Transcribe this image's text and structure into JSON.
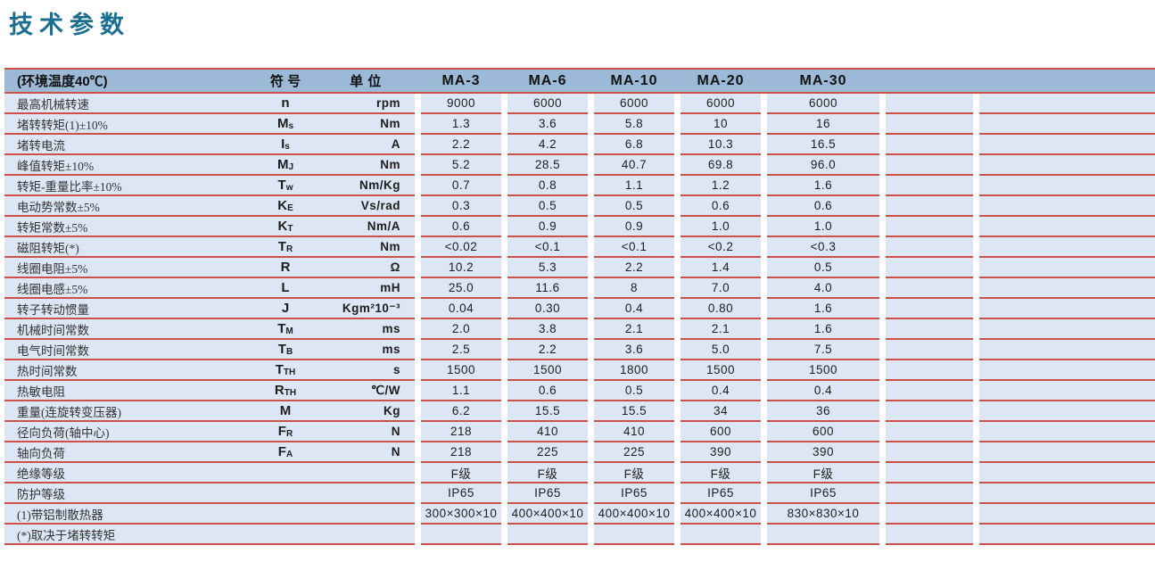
{
  "page": {
    "title": "技术参数"
  },
  "table": {
    "condition_note": "(环境温度40℃)",
    "col_headers": {
      "symbol": "符 号",
      "unit": "单 位"
    },
    "models": [
      "MA-3",
      "MA-6",
      "MA-10",
      "MA-20",
      "MA-30"
    ],
    "rows": [
      {
        "label": "最高机械转速",
        "symbol": "n",
        "sub": "",
        "unit": "rpm",
        "values": [
          "9000",
          "6000",
          "6000",
          "6000",
          "6000"
        ]
      },
      {
        "label": "堵转转矩(1)±10%",
        "symbol": "M",
        "sub": "s",
        "unit": "Nm",
        "values": [
          "1.3",
          "3.6",
          "5.8",
          "10",
          "16"
        ]
      },
      {
        "label": "堵转电流",
        "symbol": "I",
        "sub": "s",
        "unit": "A",
        "values": [
          "2.2",
          "4.2",
          "6.8",
          "10.3",
          "16.5"
        ]
      },
      {
        "label": "峰值转矩±10%",
        "symbol": "M",
        "sub": "J",
        "unit": "Nm",
        "values": [
          "5.2",
          "28.5",
          "40.7",
          "69.8",
          "96.0"
        ]
      },
      {
        "label": "转矩-重量比率±10%",
        "symbol": "T",
        "sub": "w",
        "unit": "Nm/Kg",
        "values": [
          "0.7",
          "0.8",
          "1.1",
          "1.2",
          "1.6"
        ]
      },
      {
        "label": "电动势常数±5%",
        "symbol": "K",
        "sub": "E",
        "unit": "Vs/rad",
        "values": [
          "0.3",
          "0.5",
          "0.5",
          "0.6",
          "0.6"
        ]
      },
      {
        "label": "转矩常数±5%",
        "symbol": "K",
        "sub": "T",
        "unit": "Nm/A",
        "values": [
          "0.6",
          "0.9",
          "0.9",
          "1.0",
          "1.0"
        ]
      },
      {
        "label": "磁阻转矩(*)",
        "symbol": "T",
        "sub": "R",
        "unit": "Nm",
        "values": [
          "<0.02",
          "<0.1",
          "<0.1",
          "<0.2",
          "<0.3"
        ]
      },
      {
        "label": "线圈电阻±5%",
        "symbol": "R",
        "sub": "",
        "unit": "Ω",
        "values": [
          "10.2",
          "5.3",
          "2.2",
          "1.4",
          "0.5"
        ]
      },
      {
        "label": "线圈电感±5%",
        "symbol": "L",
        "sub": "",
        "unit": "mH",
        "values": [
          "25.0",
          "11.6",
          "8",
          "7.0",
          "4.0"
        ]
      },
      {
        "label": "转子转动惯量",
        "symbol": "J",
        "sub": "",
        "unit": "Kgm²10⁻³",
        "values": [
          "0.04",
          "0.30",
          "0.4",
          "0.80",
          "1.6"
        ]
      },
      {
        "label": "机械时间常数",
        "symbol": "T",
        "sub": "M",
        "unit": "ms",
        "values": [
          "2.0",
          "3.8",
          "2.1",
          "2.1",
          "1.6"
        ]
      },
      {
        "label": "电气时间常数",
        "symbol": "T",
        "sub": "B",
        "unit": "ms",
        "values": [
          "2.5",
          "2.2",
          "3.6",
          "5.0",
          "7.5"
        ]
      },
      {
        "label": "热时间常数",
        "symbol": "T",
        "sub": "TH",
        "unit": "s",
        "values": [
          "1500",
          "1500",
          "1800",
          "1500",
          "1500"
        ]
      },
      {
        "label": "热敏电阻",
        "symbol": "R",
        "sub": "TH",
        "unit": "℃/W",
        "values": [
          "1.1",
          "0.6",
          "0.5",
          "0.4",
          "0.4"
        ]
      },
      {
        "label": "重量(连旋转变压器)",
        "symbol": "M",
        "sub": "",
        "unit": "Kg",
        "values": [
          "6.2",
          "15.5",
          "15.5",
          "34",
          "36"
        ]
      },
      {
        "label": "径向负荷(轴中心)",
        "symbol": "F",
        "sub": "R",
        "unit": "N",
        "values": [
          "218",
          "410",
          "410",
          "600",
          "600"
        ]
      },
      {
        "label": "轴向负荷",
        "symbol": "F",
        "sub": "A",
        "unit": "N",
        "values": [
          "218",
          "225",
          "225",
          "390",
          "390"
        ]
      },
      {
        "label": "绝缘等级",
        "symbol": "",
        "sub": "",
        "unit": "",
        "values": [
          "F级",
          "F级",
          "F级",
          "F级",
          "F级"
        ]
      },
      {
        "label": "防护等级",
        "symbol": "",
        "sub": "",
        "unit": "",
        "values": [
          "IP65",
          "IP65",
          "IP65",
          "IP65",
          "IP65"
        ]
      },
      {
        "label": "(1)带铝制散热器",
        "symbol": "",
        "sub": "",
        "unit": "",
        "values": [
          "300×300×10",
          "400×400×10",
          "400×400×10",
          "400×400×10",
          "830×830×10"
        ]
      },
      {
        "label": "(*)取决于堵转转矩",
        "symbol": "",
        "sub": "",
        "unit": "",
        "values": [
          "",
          "",
          "",
          "",
          ""
        ]
      }
    ],
    "colors": {
      "title_text": "#1b6d92",
      "header_bg": "#9cbad7",
      "row_bg": "#dde6f4",
      "grid_line_red": "#cc5047"
    }
  }
}
